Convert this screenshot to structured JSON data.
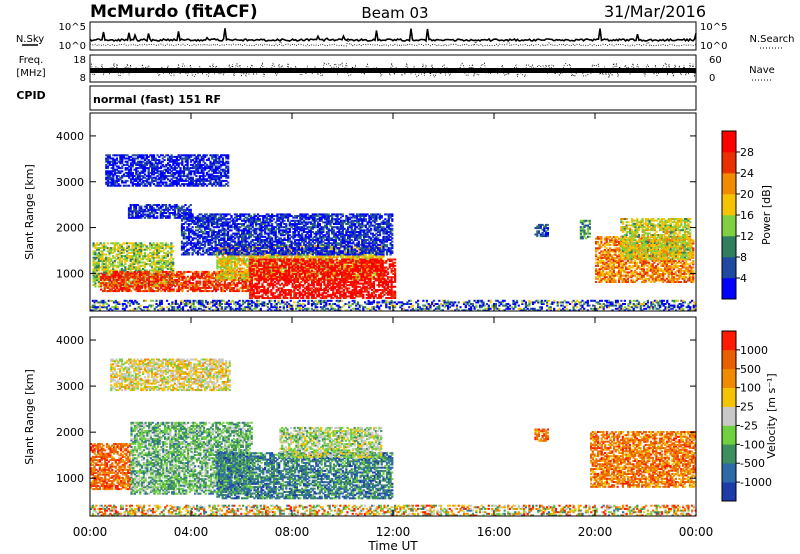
{
  "header": {
    "station": "McMurdo (fitACF)",
    "beam": "Beam 03",
    "date": "31/Mar/2016"
  },
  "housekeeping": {
    "nsky_label": "N.Sky",
    "nsky_ticks": [
      "10^5",
      "10^0"
    ],
    "nsearch_label": "N.Search",
    "nsearch_ticks": [
      "10^5",
      "10^0"
    ],
    "freq_label": "Freq.",
    "freq_unit": "[MHz]",
    "freq_ticks": [
      "18",
      "8"
    ],
    "nave_label": "Nave",
    "nave_ticks": [
      "60",
      "0"
    ],
    "cpid_label": "CPID",
    "cpid_value": "normal (fast) 151 RF"
  },
  "chart_data": [
    {
      "type": "heatmap",
      "name": "power",
      "ylabel": "Slant Range [km]",
      "xlabel": "Time UT",
      "xticks": [
        "00:00",
        "04:00",
        "08:00",
        "12:00",
        "16:00",
        "20:00",
        "00:00"
      ],
      "xlim": [
        0,
        24
      ],
      "ylim": [
        180,
        4500
      ],
      "yticks": [
        1000,
        2000,
        3000,
        4000
      ],
      "colorbar": {
        "label": "Power [dB]",
        "ticks": [
          4,
          8,
          12,
          16,
          20,
          24,
          28
        ],
        "range": [
          0,
          32
        ],
        "colors": [
          "#0000ff",
          "#1f4aa0",
          "#2f7f5f",
          "#7fd040",
          "#f5c400",
          "#f08a00",
          "#e83000",
          "#ff0000"
        ]
      },
      "regions": [
        {
          "t": [
            0.1,
            3.3
          ],
          "r": [
            700,
            1650
          ],
          "level": 0.45
        },
        {
          "t": [
            0.4,
            6.4
          ],
          "r": [
            600,
            1050
          ],
          "level": 0.82
        },
        {
          "t": [
            5.0,
            11.6
          ],
          "r": [
            850,
            1600
          ],
          "level": 0.55
        },
        {
          "t": [
            6.3,
            12.1
          ],
          "r": [
            450,
            1300
          ],
          "level": 0.95
        },
        {
          "t": [
            3.6,
            12.0
          ],
          "r": [
            1400,
            2300
          ],
          "level": 0.12
        },
        {
          "t": [
            0.6,
            5.5
          ],
          "r": [
            2900,
            3600
          ],
          "level": 0.08
        },
        {
          "t": [
            1.5,
            4.0
          ],
          "r": [
            2200,
            2500
          ],
          "level": 0.1
        },
        {
          "t": [
            20.0,
            23.9
          ],
          "r": [
            800,
            1800
          ],
          "level": 0.7
        },
        {
          "t": [
            21.0,
            23.8
          ],
          "r": [
            1300,
            2200
          ],
          "level": 0.5
        },
        {
          "t": [
            17.6,
            18.1
          ],
          "r": [
            1800,
            2050
          ],
          "level": 0.2
        },
        {
          "t": [
            19.4,
            19.8
          ],
          "r": [
            1750,
            2150
          ],
          "level": 0.35
        },
        {
          "t": [
            0,
            24
          ],
          "r": [
            180,
            420
          ],
          "level": 0.2
        }
      ]
    },
    {
      "type": "heatmap",
      "name": "velocity",
      "ylabel": "Slant Range [km]",
      "xlabel": "Time UT",
      "xticks": [
        "00:00",
        "04:00",
        "08:00",
        "12:00",
        "16:00",
        "20:00",
        "00:00"
      ],
      "xlim": [
        0,
        24
      ],
      "ylim": [
        180,
        4500
      ],
      "yticks": [
        1000,
        2000,
        3000,
        4000
      ],
      "colorbar": {
        "label": "Velocity [m s⁻¹]",
        "ticks": [
          1000,
          500,
          100,
          25,
          -25,
          -100,
          -500,
          -1000
        ],
        "colors": [
          "#1c3ca8",
          "#2c6aa8",
          "#3d8f5f",
          "#6fd040",
          "#c8c8c8",
          "#f5c400",
          "#f08a00",
          "#e86000",
          "#ff1a00"
        ]
      },
      "regions": [
        {
          "t": [
            0.0,
            1.6
          ],
          "r": [
            750,
            1750
          ],
          "level": 0.82
        },
        {
          "t": [
            1.6,
            6.4
          ],
          "r": [
            650,
            2200
          ],
          "level": 0.35
        },
        {
          "t": [
            5.0,
            12.0
          ],
          "r": [
            550,
            1550
          ],
          "level": 0.22
        },
        {
          "t": [
            7.5,
            11.5
          ],
          "r": [
            1450,
            2100
          ],
          "level": 0.45
        },
        {
          "t": [
            0.8,
            5.5
          ],
          "r": [
            2900,
            3600
          ],
          "level": 0.55
        },
        {
          "t": [
            19.8,
            24.0
          ],
          "r": [
            800,
            2000
          ],
          "level": 0.78
        },
        {
          "t": [
            17.6,
            18.1
          ],
          "r": [
            1800,
            2050
          ],
          "level": 0.78
        },
        {
          "t": [
            0,
            24
          ],
          "r": [
            180,
            420
          ],
          "level": 0.6
        }
      ]
    }
  ]
}
